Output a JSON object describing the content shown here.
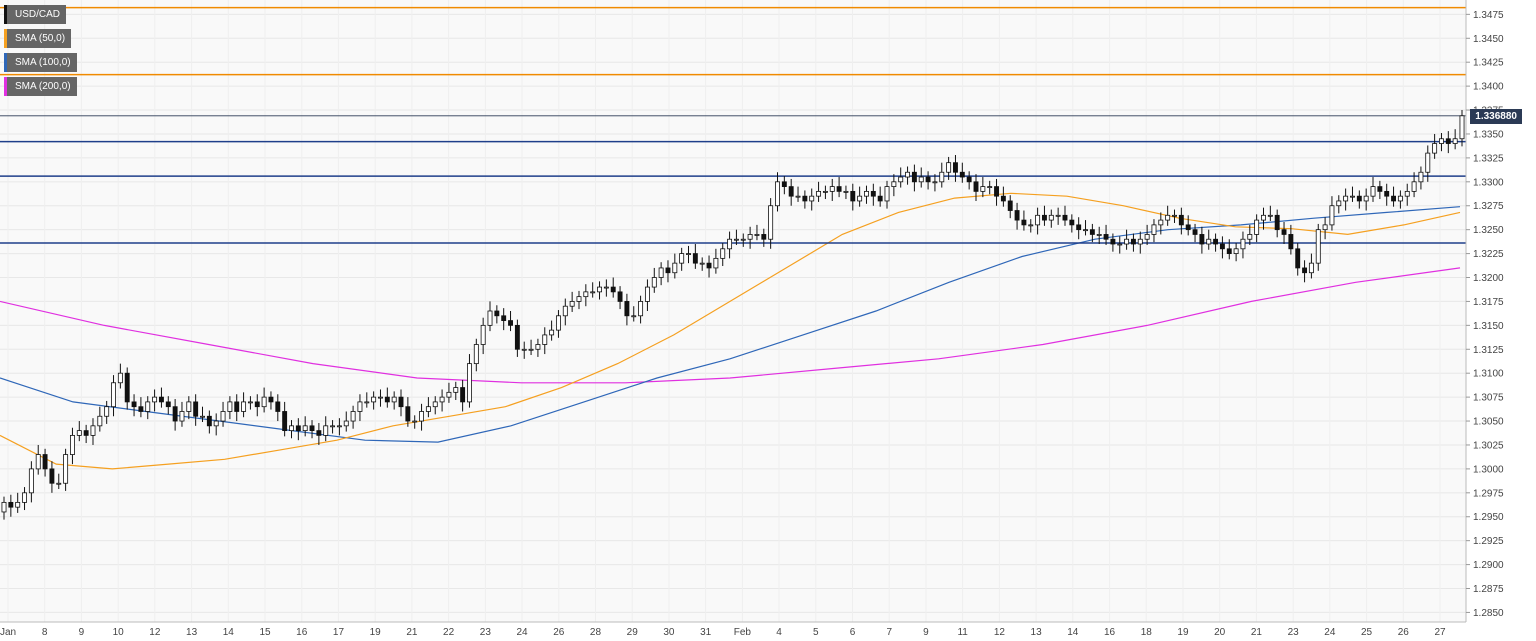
{
  "chart_data": {
    "type": "candlestick",
    "symbol": "USD/CAD",
    "last_price": "1.336880",
    "legend": [
      {
        "label": "USD/CAD",
        "color": "#111111"
      },
      {
        "label": "SMA (50,0)",
        "color": "#f5a020"
      },
      {
        "label": "SMA (100,0)",
        "color": "#2f67b8"
      },
      {
        "label": "SMA (200,0)",
        "color": "#e030e0"
      }
    ],
    "ylim": [
      1.284,
      1.349
    ],
    "y_ticks": [
      "1.3475",
      "1.3450",
      "1.3425",
      "1.3400",
      "1.3375",
      "1.3350",
      "1.3325",
      "1.3300",
      "1.3275",
      "1.3250",
      "1.3225",
      "1.3200",
      "1.3175",
      "1.3150",
      "1.3125",
      "1.3100",
      "1.3075",
      "1.3050",
      "1.3025",
      "1.3000",
      "1.2975",
      "1.2950",
      "1.2925",
      "1.2900",
      "1.2875",
      "1.2850"
    ],
    "x_ticks": [
      "Jan",
      "8",
      "9",
      "10",
      "12",
      "13",
      "14",
      "15",
      "16",
      "17",
      "19",
      "21",
      "22",
      "23",
      "24",
      "26",
      "28",
      "29",
      "30",
      "31",
      "Feb",
      "4",
      "5",
      "6",
      "7",
      "9",
      "11",
      "12",
      "13",
      "14",
      "16",
      "18",
      "19",
      "20",
      "21",
      "23",
      "24",
      "25",
      "26",
      "27"
    ],
    "resistance_lines": [
      1.3482,
      1.3412
    ],
    "support_lines": [
      1.3342,
      1.3306,
      1.3236
    ],
    "price_line": 1.3369,
    "closes": [
      1.2965,
      1.296,
      1.2965,
      1.2975,
      1.3,
      1.3015,
      1.3,
      1.2985,
      1.2985,
      1.3015,
      1.3035,
      1.304,
      1.3035,
      1.3045,
      1.3055,
      1.3065,
      1.309,
      1.31,
      1.307,
      1.3065,
      1.306,
      1.307,
      1.3075,
      1.307,
      1.3065,
      1.305,
      1.306,
      1.307,
      1.3055,
      1.3055,
      1.3045,
      1.305,
      1.306,
      1.307,
      1.306,
      1.307,
      1.307,
      1.3065,
      1.3075,
      1.307,
      1.306,
      1.304,
      1.3045,
      1.304,
      1.3045,
      1.304,
      1.3035,
      1.3045,
      1.3045,
      1.3045,
      1.305,
      1.306,
      1.307,
      1.307,
      1.3075,
      1.3075,
      1.307,
      1.3075,
      1.3065,
      1.305,
      1.305,
      1.306,
      1.3065,
      1.307,
      1.3075,
      1.308,
      1.3085,
      1.307,
      1.311,
      1.313,
      1.315,
      1.3165,
      1.316,
      1.3155,
      1.315,
      1.3125,
      1.3125,
      1.3125,
      1.313,
      1.314,
      1.3145,
      1.316,
      1.317,
      1.3175,
      1.318,
      1.3185,
      1.3185,
      1.319,
      1.319,
      1.3185,
      1.3175,
      1.316,
      1.316,
      1.3175,
      1.319,
      1.32,
      1.321,
      1.3205,
      1.3215,
      1.3225,
      1.3225,
      1.3215,
      1.3215,
      1.321,
      1.322,
      1.323,
      1.324,
      1.324,
      1.324,
      1.3245,
      1.3245,
      1.324,
      1.3275,
      1.33,
      1.3295,
      1.3285,
      1.3285,
      1.328,
      1.3285,
      1.329,
      1.329,
      1.3295,
      1.329,
      1.329,
      1.328,
      1.3285,
      1.329,
      1.3285,
      1.328,
      1.3295,
      1.33,
      1.3305,
      1.331,
      1.33,
      1.3305,
      1.33,
      1.33,
      1.331,
      1.332,
      1.331,
      1.3305,
      1.33,
      1.329,
      1.3295,
      1.3295,
      1.3285,
      1.328,
      1.327,
      1.326,
      1.3255,
      1.3255,
      1.3265,
      1.326,
      1.3265,
      1.3265,
      1.326,
      1.3255,
      1.325,
      1.325,
      1.3245,
      1.3245,
      1.324,
      1.3235,
      1.3235,
      1.324,
      1.3235,
      1.324,
      1.3245,
      1.3255,
      1.326,
      1.3265,
      1.3265,
      1.3255,
      1.325,
      1.3245,
      1.3235,
      1.324,
      1.3235,
      1.323,
      1.3225,
      1.323,
      1.324,
      1.3245,
      1.326,
      1.3265,
      1.3265,
      1.325,
      1.3245,
      1.323,
      1.321,
      1.3205,
      1.3215,
      1.325,
      1.3255,
      1.3275,
      1.328,
      1.3285,
      1.3285,
      1.328,
      1.3285,
      1.3295,
      1.329,
      1.3285,
      1.328,
      1.3285,
      1.329,
      1.33,
      1.331,
      1.333,
      1.334,
      1.3345,
      1.334,
      1.3345,
      1.3369
    ],
    "sma50": [
      1.3035,
      1.3005,
      1.3,
      1.3005,
      1.301,
      1.302,
      1.303,
      1.3045,
      1.3055,
      1.3065,
      1.3085,
      1.311,
      1.314,
      1.3175,
      1.321,
      1.3245,
      1.3268,
      1.3283,
      1.3288,
      1.3285,
      1.3275,
      1.3262,
      1.3253,
      1.3251,
      1.3245,
      1.3255,
      1.3268
    ],
    "sma100": [
      1.3095,
      1.307,
      1.306,
      1.305,
      1.304,
      1.303,
      1.3028,
      1.3045,
      1.307,
      1.3095,
      1.3115,
      1.314,
      1.3165,
      1.3195,
      1.3222,
      1.324,
      1.325,
      1.3255,
      1.3262,
      1.3268,
      1.3274
    ],
    "sma200": [
      1.3175,
      1.315,
      1.313,
      1.311,
      1.3095,
      1.309,
      1.309,
      1.3095,
      1.3105,
      1.3115,
      1.313,
      1.315,
      1.3175,
      1.3195,
      1.321
    ]
  }
}
